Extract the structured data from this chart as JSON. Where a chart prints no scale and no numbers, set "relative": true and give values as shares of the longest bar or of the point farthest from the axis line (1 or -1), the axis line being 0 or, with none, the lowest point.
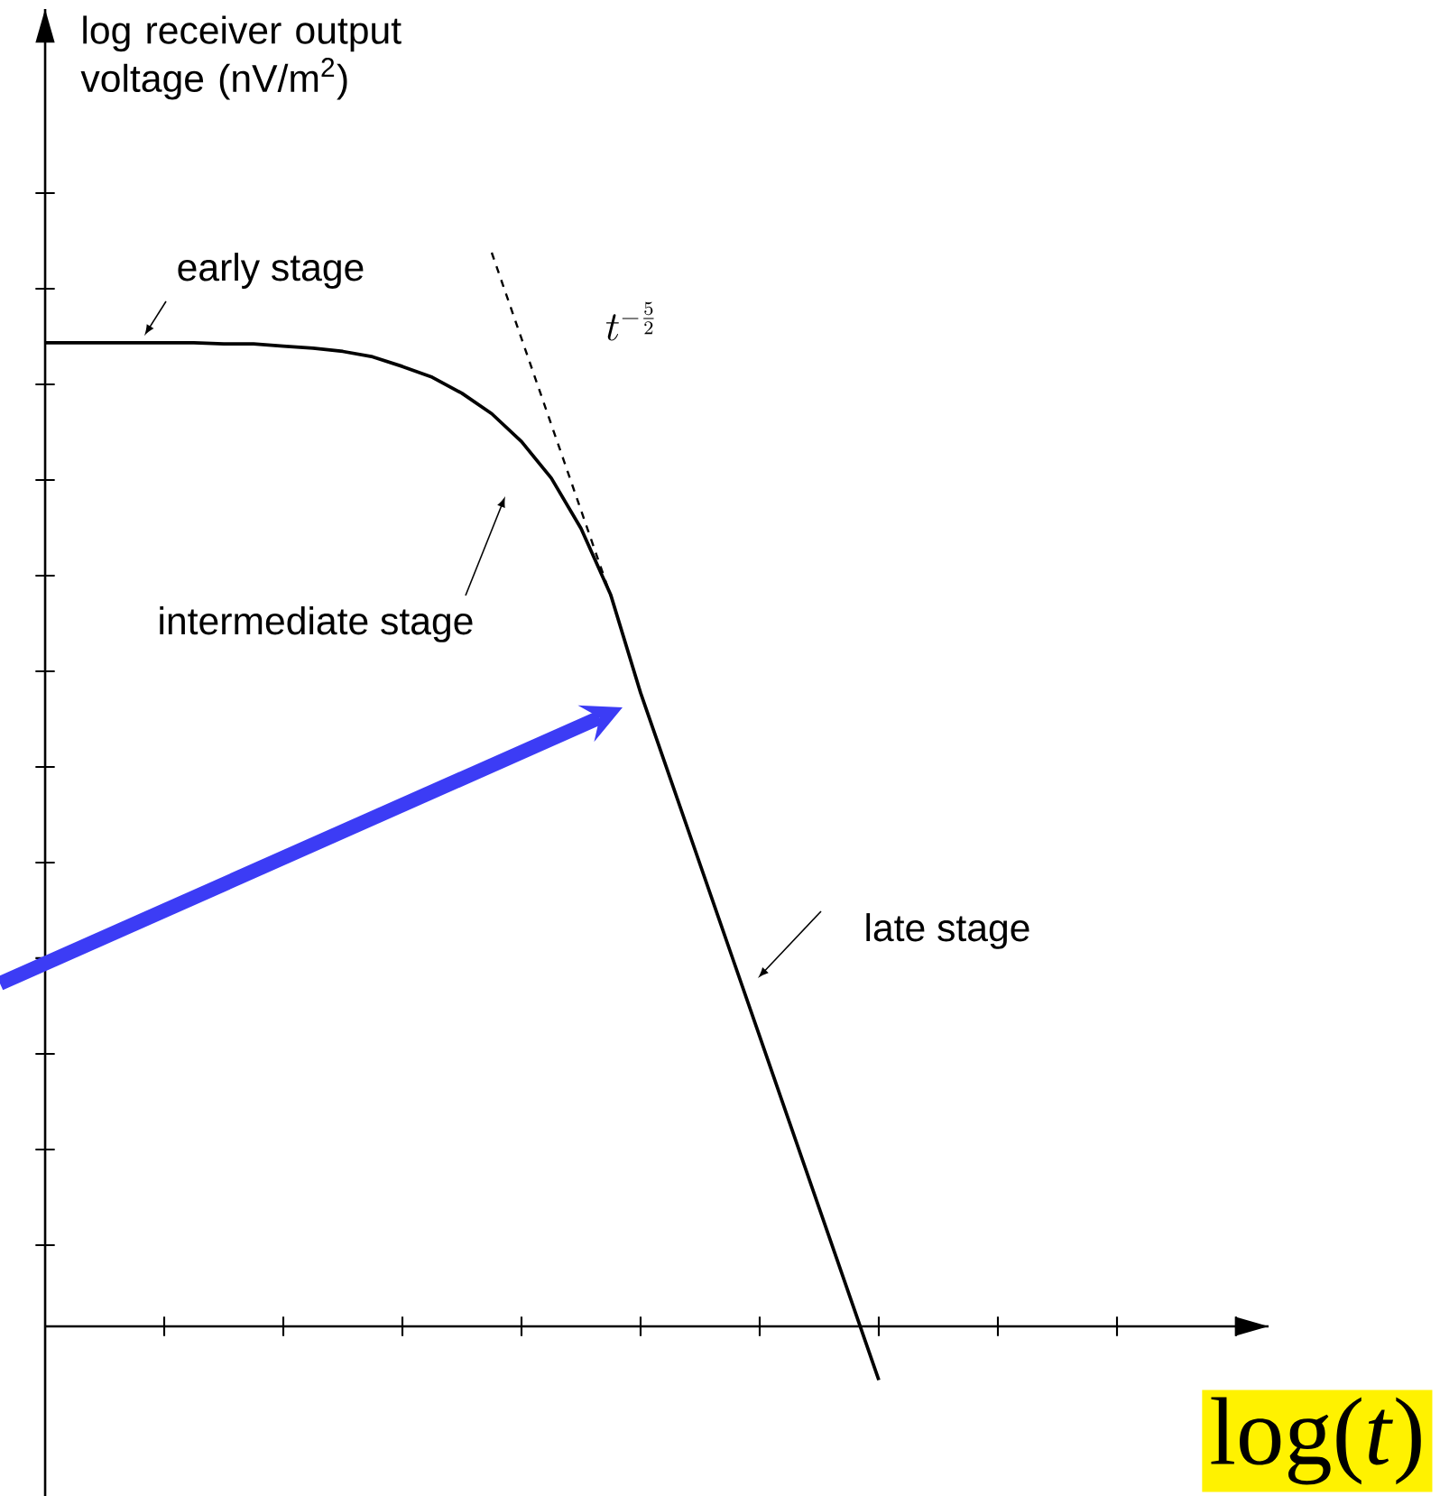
{
  "chart_data": {
    "type": "line",
    "relative": true,
    "xlabel": "log(*t*)",
    "ylabel": "log receiver output voltage (nV/m$^{2}$)",
    "categories": [
      null,
      null,
      null,
      null,
      null,
      null,
      null,
      null,
      null,
      null,
      null,
      null,
      null,
      null,
      null,
      null,
      null,
      null,
      null,
      null,
      null,
      null,
      null,
      null,
      null,
      null,
      null,
      null,
      null
    ],
    "series": [
      {
        "color": "#000000",
        "line_style": "solid",
        "values": [
          0.916,
          0.916,
          0.916,
          0.916,
          0.916,
          0.916,
          0.915,
          0.915,
          0.913,
          0.911,
          0.908,
          0.903,
          0.894,
          0.884,
          0.869,
          0.85,
          0.824,
          0.79,
          0.743,
          0.681,
          0.59,
          0.51,
          0.43,
          0.35,
          0.27,
          0.19,
          0.11,
          0.03,
          -0.05
        ]
      },
      {
        "color": "#000000",
        "line_style": "dashed",
        "values": [
          null,
          null,
          null,
          null,
          null,
          null,
          null,
          null,
          null,
          null,
          null,
          null,
          null,
          null,
          null,
          1.0,
          0.92,
          0.84,
          0.76,
          0.68,
          null,
          null,
          null,
          null,
          null,
          null,
          null,
          null,
          null
        ]
      }
    ],
    "annotations": [
      "early stage",
      "intermediate stage",
      "late stage",
      "t^{-\\frac{5}{2}}"
    ]
  }
}
